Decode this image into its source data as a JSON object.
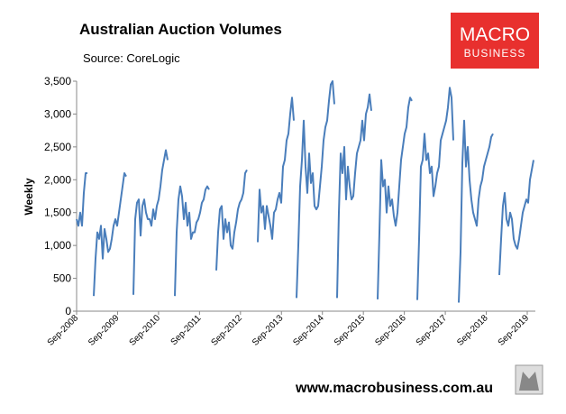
{
  "chart_data": {
    "type": "line",
    "title": "Australian Auction Volumes",
    "subtitle": "Source: CoreLogic",
    "y_label": "Weekly",
    "color": "#4a7ebb",
    "x": [
      2008.67,
      2008.714,
      2008.758,
      2008.802,
      2008.846,
      2008.89,
      2008.934,
      2008.98,
      2009.088,
      2009.132,
      2009.176,
      2009.22,
      2009.264,
      2009.308,
      2009.352,
      2009.396,
      2009.44,
      2009.484,
      2009.528,
      2009.572,
      2009.616,
      2009.66,
      2009.704,
      2009.748,
      2009.792,
      2009.836,
      2009.88,
      2009.95,
      2010.056,
      2010.1,
      2010.144,
      2010.188,
      2010.232,
      2010.276,
      2010.32,
      2010.364,
      2010.408,
      2010.452,
      2010.496,
      2010.54,
      2010.584,
      2010.628,
      2010.672,
      2010.716,
      2010.76,
      2010.804,
      2010.848,
      2010.892,
      2010.97,
      2011.068,
      2011.112,
      2011.156,
      2011.2,
      2011.244,
      2011.288,
      2011.332,
      2011.376,
      2011.42,
      2011.464,
      2011.508,
      2011.552,
      2011.596,
      2011.64,
      2011.684,
      2011.728,
      2011.772,
      2011.816,
      2011.86,
      2011.904,
      2011.99,
      2012.08,
      2012.124,
      2012.168,
      2012.212,
      2012.256,
      2012.3,
      2012.344,
      2012.388,
      2012.432,
      2012.476,
      2012.52,
      2012.564,
      2012.608,
      2012.652,
      2012.696,
      2012.74,
      2012.784,
      2012.828,
      2012.96,
      2013.092,
      2013.136,
      2013.18,
      2013.224,
      2013.268,
      2013.312,
      2013.356,
      2013.4,
      2013.444,
      2013.488,
      2013.532,
      2013.576,
      2013.62,
      2013.664,
      2013.708,
      2013.752,
      2013.796,
      2013.84,
      2013.884,
      2013.928,
      2013.972,
      2014.0,
      2014.038,
      2014.082,
      2014.126,
      2014.17,
      2014.214,
      2014.258,
      2014.302,
      2014.346,
      2014.39,
      2014.434,
      2014.478,
      2014.522,
      2014.566,
      2014.61,
      2014.654,
      2014.698,
      2014.742,
      2014.786,
      2014.83,
      2014.874,
      2014.918,
      2014.962,
      2014.99,
      2015.028,
      2015.072,
      2015.116,
      2015.16,
      2015.204,
      2015.248,
      2015.292,
      2015.336,
      2015.38,
      2015.424,
      2015.468,
      2015.512,
      2015.556,
      2015.6,
      2015.644,
      2015.688,
      2015.732,
      2015.776,
      2015.82,
      2015.864,
      2015.94,
      2016.018,
      2016.062,
      2016.106,
      2016.15,
      2016.194,
      2016.238,
      2016.282,
      2016.326,
      2016.37,
      2016.414,
      2016.458,
      2016.502,
      2016.546,
      2016.59,
      2016.634,
      2016.678,
      2016.722,
      2016.766,
      2016.81,
      2016.854,
      2016.94,
      2016.986,
      2017.03,
      2017.074,
      2017.118,
      2017.162,
      2017.206,
      2017.25,
      2017.294,
      2017.338,
      2017.382,
      2017.426,
      2017.47,
      2017.514,
      2017.558,
      2017.602,
      2017.646,
      2017.69,
      2017.734,
      2017.778,
      2017.822,
      2017.866,
      2017.93,
      2017.998,
      2018.042,
      2018.086,
      2018.13,
      2018.174,
      2018.218,
      2018.262,
      2018.306,
      2018.35,
      2018.394,
      2018.438,
      2018.482,
      2018.526,
      2018.57,
      2018.614,
      2018.658,
      2018.702,
      2018.746,
      2018.79,
      2018.834,
      2018.91,
      2018.988,
      2019.032,
      2019.076,
      2019.12,
      2019.164,
      2019.208,
      2019.252,
      2019.296,
      2019.34,
      2019.384,
      2019.428,
      2019.472,
      2019.516,
      2019.56,
      2019.604,
      2019.648,
      2019.692,
      2019.736,
      2019.78,
      2019.824
    ],
    "values": [
      1400,
      1300,
      1500,
      1300,
      1800,
      2100,
      2100,
      null,
      230,
      800,
      1200,
      1100,
      1300,
      800,
      1250,
      1100,
      900,
      950,
      1100,
      1300,
      1400,
      1300,
      1500,
      1700,
      1900,
      2100,
      2050,
      null,
      250,
      1400,
      1650,
      1700,
      1150,
      1600,
      1700,
      1500,
      1400,
      1400,
      1300,
      1550,
      1400,
      1600,
      1700,
      1900,
      2150,
      2300,
      2450,
      2300,
      null,
      230,
      1200,
      1700,
      1900,
      1750,
      1400,
      1650,
      1300,
      1500,
      1100,
      1200,
      1200,
      1350,
      1400,
      1500,
      1650,
      1700,
      1850,
      1900,
      1850,
      null,
      620,
      1200,
      1550,
      1600,
      1100,
      1400,
      1200,
      1350,
      1000,
      950,
      1200,
      1350,
      1550,
      1650,
      1700,
      1800,
      2100,
      2150,
      null,
      1050,
      1850,
      1500,
      1600,
      1250,
      1600,
      1450,
      1300,
      1100,
      1500,
      1550,
      1700,
      1800,
      1650,
      2200,
      2300,
      2600,
      2700,
      3000,
      3250,
      2900,
      null,
      200,
      1000,
      1900,
      2300,
      2900,
      2200,
      1800,
      2400,
      1950,
      2100,
      1600,
      1550,
      1600,
      1900,
      2200,
      2600,
      2800,
      2900,
      3200,
      3450,
      3500,
      3150,
      null,
      200,
      1500,
      2400,
      2100,
      2500,
      1700,
      2200,
      1900,
      1700,
      1750,
      2100,
      2400,
      2500,
      2600,
      2900,
      2600,
      3000,
      3100,
      3300,
      3050,
      null,
      180,
      1200,
      2300,
      1900,
      2000,
      1500,
      1900,
      1600,
      1700,
      1450,
      1300,
      1500,
      1900,
      2300,
      2500,
      2700,
      2800,
      3100,
      3250,
      3200,
      null,
      170,
      1100,
      2200,
      2300,
      2700,
      2300,
      2400,
      2100,
      2200,
      1750,
      1900,
      2100,
      2200,
      2600,
      2700,
      2800,
      2900,
      3100,
      3400,
      3250,
      2600,
      null,
      130,
      900,
      2250,
      2900,
      2200,
      2500,
      2000,
      1700,
      1500,
      1400,
      1300,
      1700,
      1900,
      2000,
      2200,
      2300,
      2400,
      2500,
      2650,
      2700,
      null,
      550,
      1100,
      1600,
      1800,
      1400,
      1300,
      1500,
      1400,
      1100,
      1000,
      950,
      1100,
      1300,
      1500,
      1600,
      1700,
      1650,
      2000,
      2150,
      2300
    ],
    "xlim": [
      2008.67,
      2019.868
    ],
    "xticks": [
      {
        "value": 2008.67,
        "label": "Sep-2008"
      },
      {
        "value": 2009.67,
        "label": "Sep-2009"
      },
      {
        "value": 2010.67,
        "label": "Sep-2010"
      },
      {
        "value": 2011.67,
        "label": "Sep-2011"
      },
      {
        "value": 2012.67,
        "label": "Sep-2012"
      },
      {
        "value": 2013.67,
        "label": "Sep-2013"
      },
      {
        "value": 2014.67,
        "label": "Sep-2014"
      },
      {
        "value": 2015.67,
        "label": "Sep-2015"
      },
      {
        "value": 2016.67,
        "label": "Sep-2016"
      },
      {
        "value": 2017.67,
        "label": "Sep-2017"
      },
      {
        "value": 2018.67,
        "label": "Sep-2018"
      },
      {
        "value": 2019.67,
        "label": "Sep-2019"
      }
    ],
    "ylim": [
      0,
      3500
    ],
    "yticks": [
      0,
      500,
      {
        "value": 1000,
        "label": "1,000"
      },
      {
        "value": 1500,
        "label": "1,500"
      },
      {
        "value": 2000,
        "label": "2,000"
      },
      {
        "value": 2500,
        "label": "2,500"
      },
      {
        "value": 3000,
        "label": "3,000"
      },
      {
        "value": 3500,
        "label": "3,500"
      }
    ],
    "grid": false
  },
  "logo": {
    "line1": "MACRO",
    "line2": "BUSINESS"
  },
  "footer": "www.macrobusiness.com.au"
}
